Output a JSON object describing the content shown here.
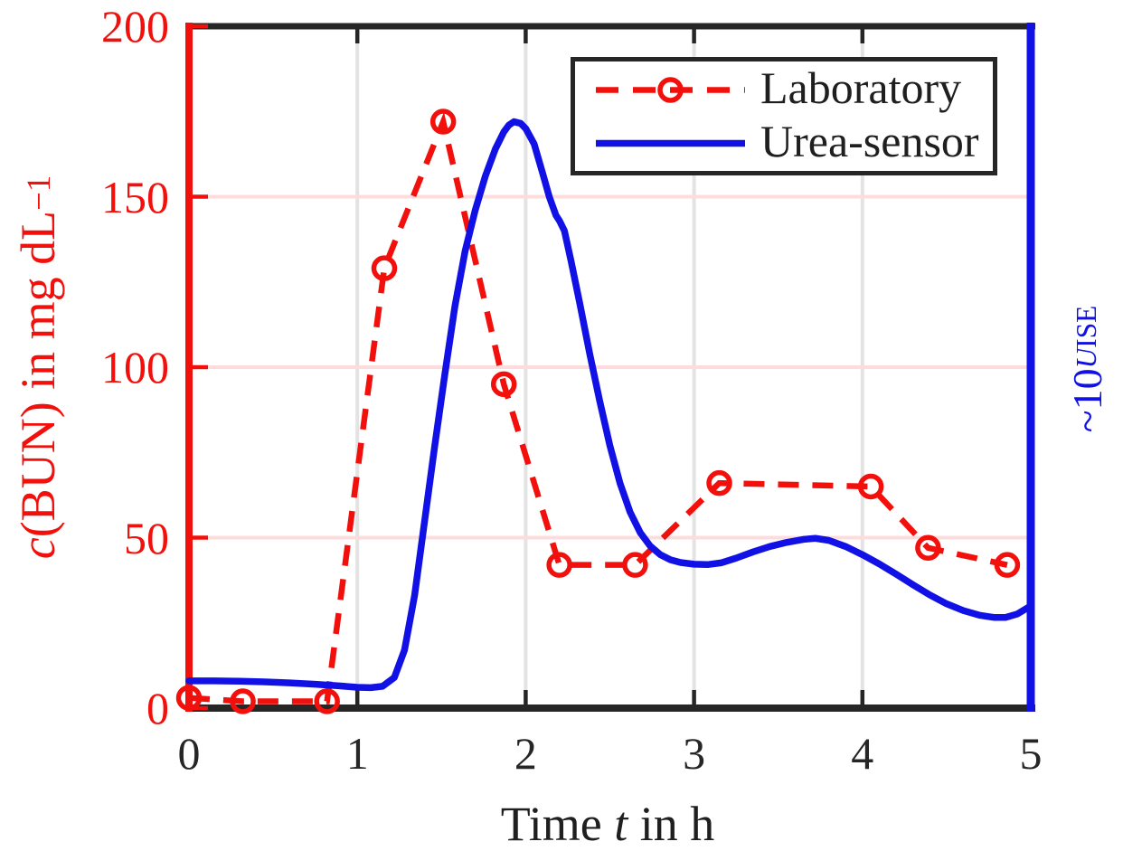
{
  "colors": {
    "laboratory_red": "#f2100c",
    "sensor_blue": "#1111e6",
    "axis_dark": "#262626",
    "text_dark": "#1f1f1f",
    "grid_vertical": "#e3e3e3",
    "grid_horizontal": "#ffdcdc",
    "background": "#ffffff"
  },
  "labels": {
    "x_title": {
      "pre": "Time ",
      "italic": "t",
      "post": " in h"
    },
    "left_title": {
      "italic": "c",
      "main": "(BUN) in mg dL",
      "sup": "−1"
    },
    "right_title": {
      "pre": "~10",
      "sup_italic": "U",
      "sub": "ISE"
    }
  },
  "legend": {
    "entries": [
      {
        "label": "Laboratory",
        "style": "dashed",
        "marker": "circle",
        "color_key": "laboratory_red"
      },
      {
        "label": "Urea-sensor",
        "style": "solid",
        "marker": "none",
        "color_key": "sensor_blue"
      }
    ]
  },
  "chart_data": {
    "type": "line",
    "title": "",
    "xlabel": "Time t in h",
    "ylabel_left": "c(BUN) in mg dL⁻¹",
    "ylabel_right": "~10^U_ISE",
    "xlim": [
      0,
      5
    ],
    "ylim_left": [
      0,
      200
    ],
    "x_ticks": [
      0,
      1,
      2,
      3,
      4,
      5
    ],
    "x_tick_labels": [
      "0",
      "1",
      "2",
      "3",
      "4",
      "5"
    ],
    "y_ticks_left": [
      0,
      50,
      100,
      150,
      200
    ],
    "y_tick_labels_left": [
      "0",
      "50",
      "100",
      "150",
      "200"
    ],
    "grid": {
      "vertical_at": [
        1,
        2,
        3,
        4
      ],
      "horizontal_at": [
        50,
        100,
        150
      ]
    },
    "legend_position": "top-center-inside",
    "series": [
      {
        "name": "Laboratory",
        "linestyle": "dashed",
        "marker": "circle",
        "color": "#f2100c",
        "x": [
          0,
          0.32,
          0.82,
          1.16,
          1.51,
          1.87,
          2.2,
          2.65,
          3.15,
          4.05,
          4.39,
          4.86
        ],
        "y": [
          3,
          2,
          2,
          129,
          172,
          95,
          42,
          42,
          66,
          65,
          47,
          42
        ]
      },
      {
        "name": "Urea-sensor",
        "linestyle": "solid",
        "marker": "none",
        "color": "#1111e6",
        "x": [
          0,
          0.15,
          0.3,
          0.45,
          0.6,
          0.75,
          0.9,
          1.0,
          1.08,
          1.15,
          1.22,
          1.28,
          1.34,
          1.4,
          1.46,
          1.52,
          1.58,
          1.64,
          1.7,
          1.76,
          1.82,
          1.87,
          1.9,
          1.93,
          1.97,
          2.0,
          2.05,
          2.1,
          2.14,
          2.18,
          2.2,
          2.23,
          2.27,
          2.32,
          2.38,
          2.44,
          2.5,
          2.56,
          2.62,
          2.68,
          2.74,
          2.8,
          2.86,
          2.92,
          3.0,
          3.08,
          3.16,
          3.25,
          3.35,
          3.45,
          3.55,
          3.65,
          3.72,
          3.8,
          3.9,
          4.0,
          4.1,
          4.2,
          4.3,
          4.4,
          4.5,
          4.6,
          4.7,
          4.78,
          4.85,
          4.92,
          5.0
        ],
        "y": [
          8,
          8,
          7.9,
          7.7,
          7.4,
          7,
          6.5,
          6.1,
          6,
          6.4,
          9,
          17,
          33,
          55,
          77,
          98,
          118,
          134,
          146,
          156,
          164,
          169,
          171,
          172,
          171.5,
          170,
          165.5,
          157,
          150,
          144.5,
          143,
          140,
          131,
          119,
          104,
          90,
          77,
          66,
          57.5,
          51.5,
          47.5,
          45,
          43.5,
          42.7,
          42.2,
          42.1,
          42.6,
          44,
          45.8,
          47.4,
          48.6,
          49.5,
          49.8,
          49.2,
          47.4,
          45,
          42.3,
          39.3,
          36.2,
          33.2,
          30.6,
          28.6,
          27.2,
          26.6,
          26.6,
          27.6,
          30
        ]
      }
    ]
  }
}
